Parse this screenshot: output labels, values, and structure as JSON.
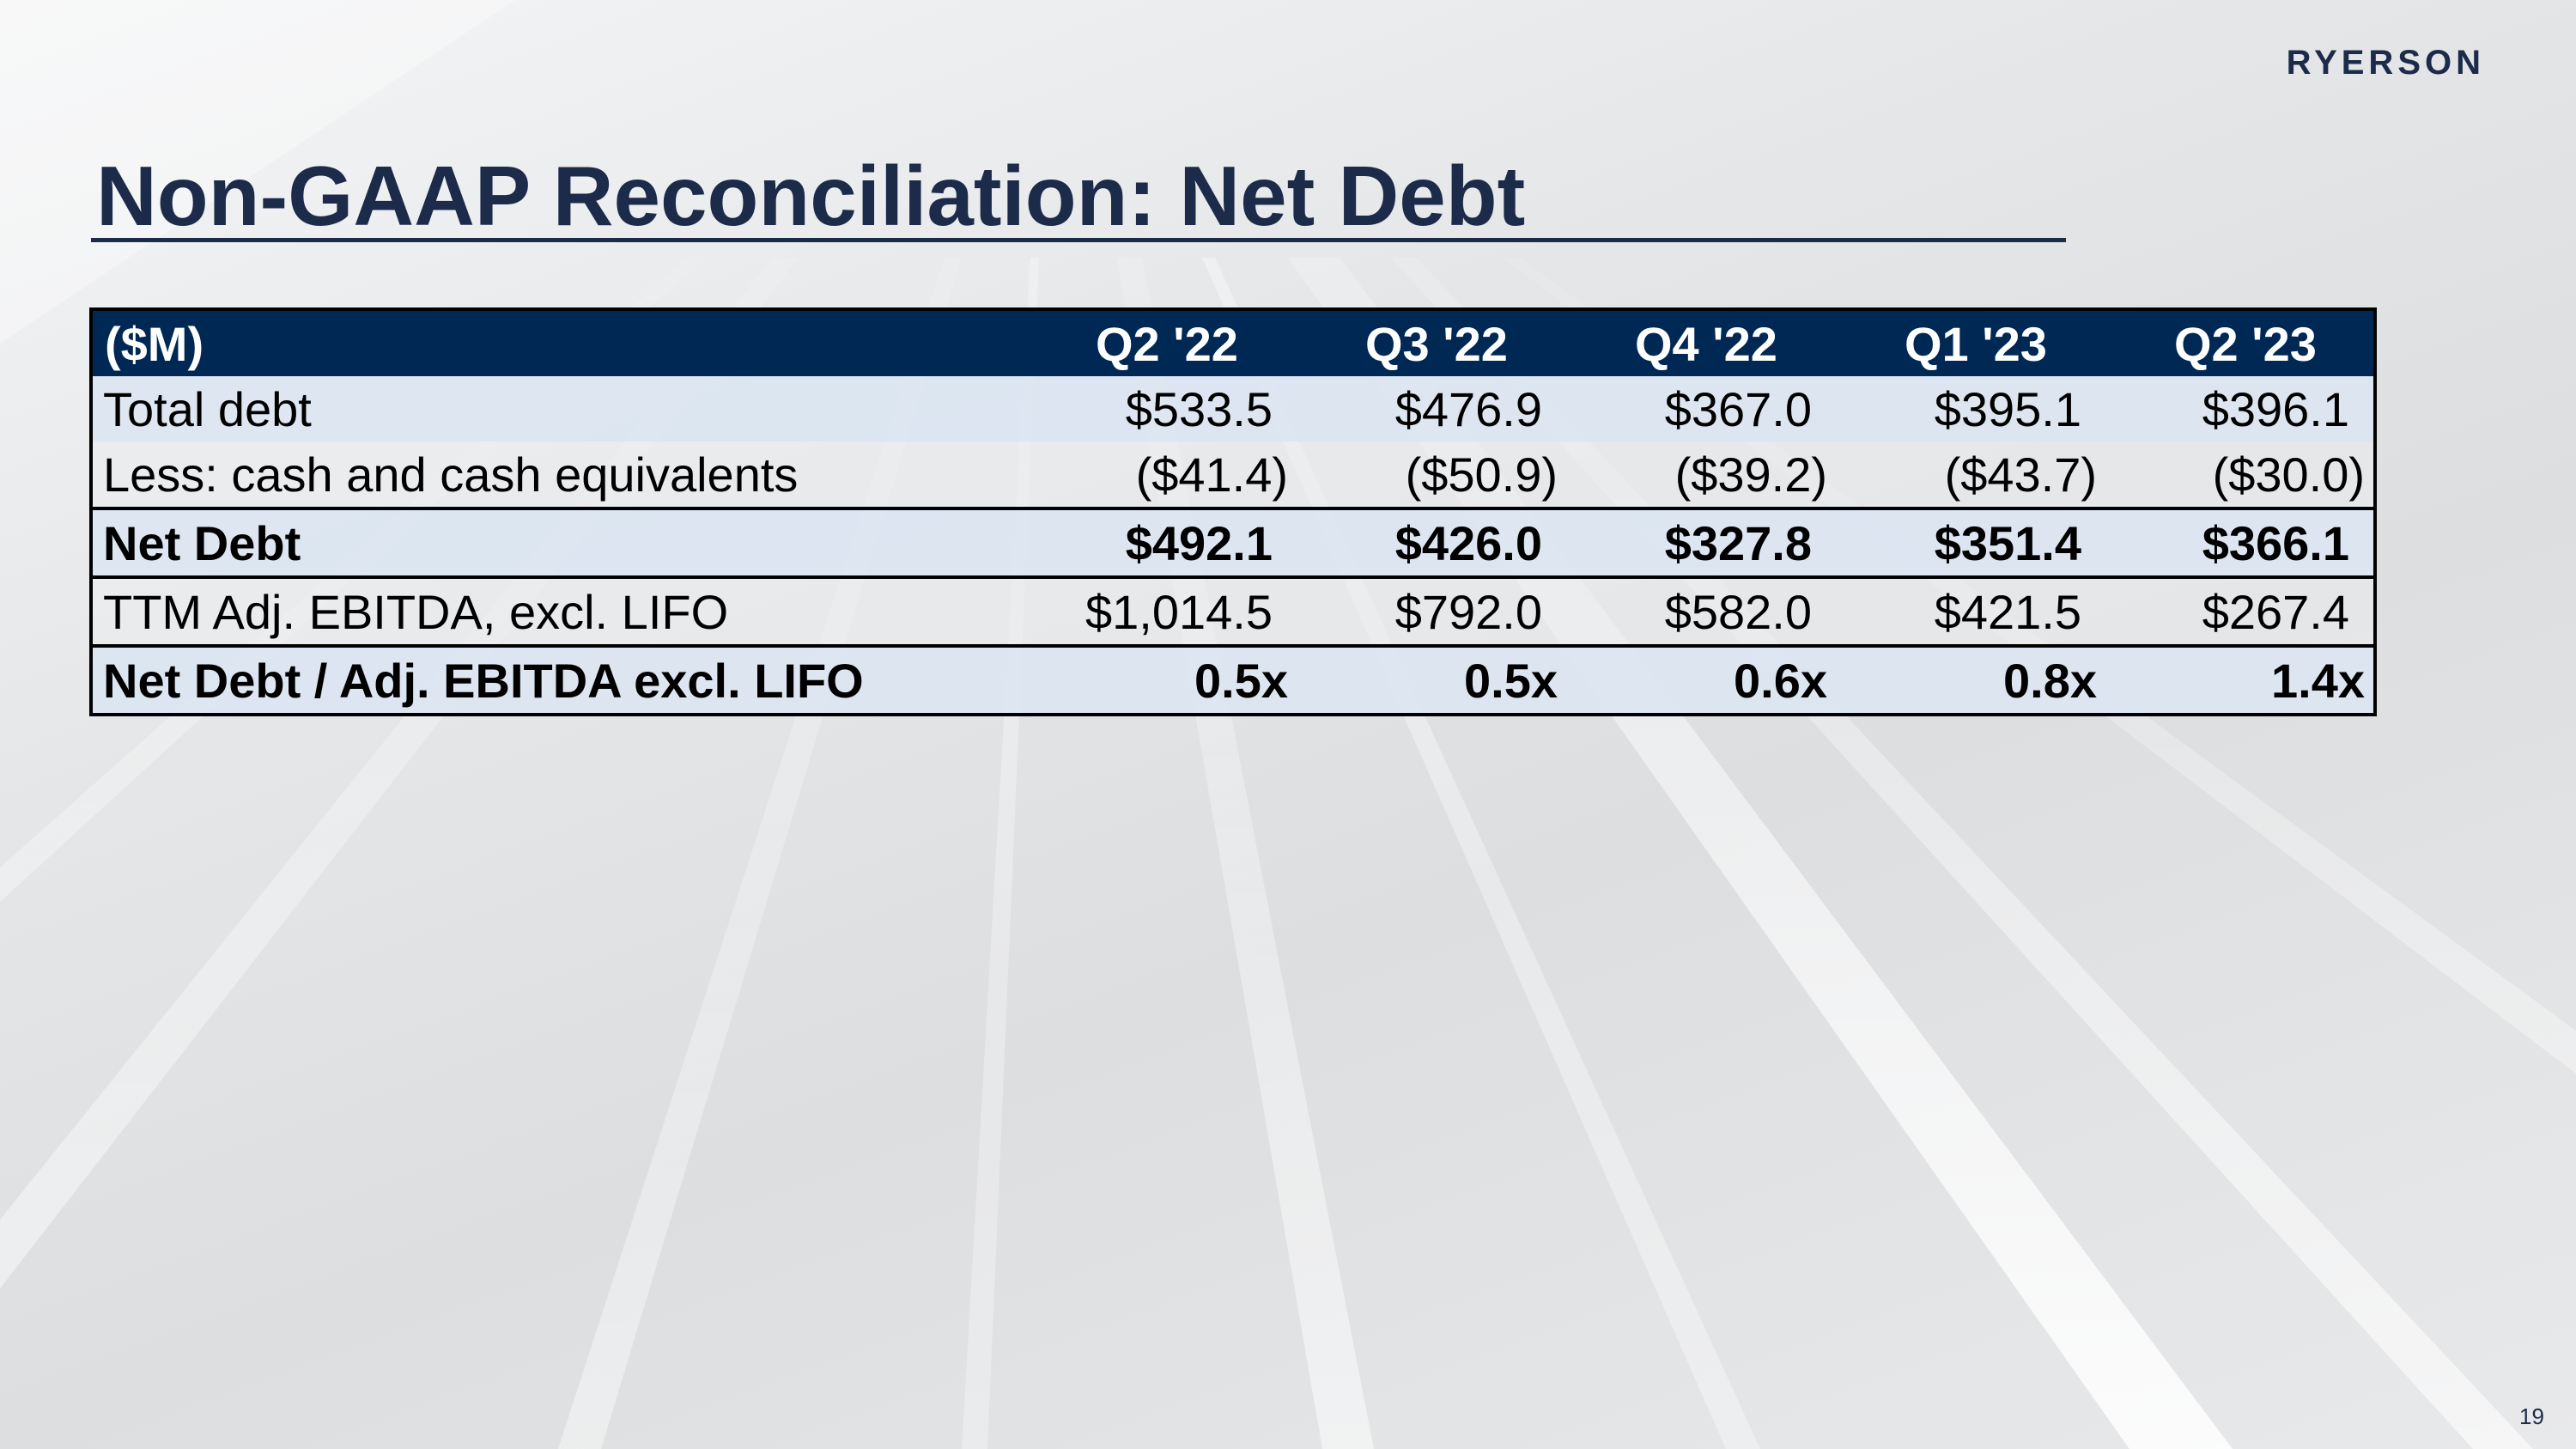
{
  "brand": {
    "logo_text": "RYERSON",
    "primary_color": "#002855",
    "title_color": "#1d2b4a"
  },
  "slide": {
    "title": "Non-GAAP Reconciliation: Net Debt",
    "page_number": "19"
  },
  "table": {
    "unit_header": "($M)",
    "columns": [
      "Q2 '22",
      "Q3 '22",
      "Q4 '22",
      "Q1 '23",
      "Q2 '23"
    ],
    "rows": [
      {
        "label": "Total debt",
        "values": [
          "$533.5",
          "$476.9",
          "$367.0",
          "$395.1",
          "$396.1"
        ]
      },
      {
        "label": "Less: cash and cash equivalents",
        "values": [
          "($41.4)",
          "($50.9)",
          "($39.2)",
          "($43.7)",
          "($30.0)"
        ]
      },
      {
        "label": "Net Debt",
        "values": [
          "$492.1",
          "$426.0",
          "$327.8",
          "$351.4",
          "$366.1"
        ]
      },
      {
        "label": "TTM Adj. EBITDA, excl. LIFO",
        "values": [
          "$1,014.5",
          "$792.0",
          "$582.0",
          "$421.5",
          "$267.4"
        ]
      },
      {
        "label": "Net Debt / Adj. EBITDA excl. LIFO",
        "values": [
          "0.5x",
          "0.5x",
          "0.6x",
          "0.8x",
          "1.4x"
        ]
      }
    ]
  }
}
